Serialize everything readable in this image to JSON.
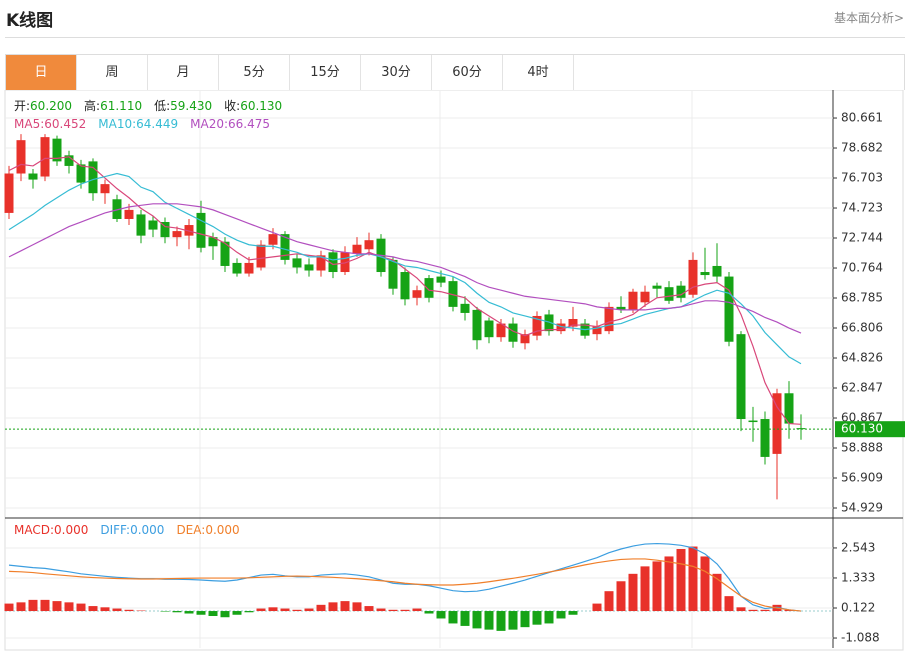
{
  "header": {
    "title": "K线图",
    "link": "基本面分析>"
  },
  "tabs": [
    "日",
    "周",
    "月",
    "5分",
    "15分",
    "30分",
    "60分",
    "4时"
  ],
  "active_tab": 0,
  "chart_data": [
    {
      "type": "candlestick",
      "up_color": "#e8312a",
      "down_color": "#16a316",
      "grid": true,
      "info": [
        {
          "label": "开:",
          "value": "60.200"
        },
        {
          "label": "高:",
          "value": "61.110"
        },
        {
          "label": "低:",
          "value": "59.430"
        },
        {
          "label": "收:",
          "value": "60.130"
        }
      ],
      "current_price": {
        "value": 60.13,
        "label": "60.130"
      },
      "current_color": "#16a316",
      "ylim": [
        54.27,
        82.51
      ],
      "yticks": [
        80.661,
        78.682,
        76.703,
        74.723,
        72.744,
        70.764,
        68.785,
        66.806,
        64.826,
        62.847,
        60.867,
        58.888,
        56.909,
        54.929
      ],
      "ohlc": [
        [
          74.4,
          77.5,
          74.0,
          77.0
        ],
        [
          77.0,
          79.6,
          76.5,
          79.2
        ],
        [
          77.0,
          77.3,
          76.0,
          76.6
        ],
        [
          76.8,
          79.6,
          76.5,
          79.4
        ],
        [
          79.3,
          79.5,
          77.5,
          77.8
        ],
        [
          78.2,
          78.5,
          77.0,
          77.5
        ],
        [
          77.6,
          77.9,
          76.0,
          76.4
        ],
        [
          77.8,
          78.0,
          75.2,
          75.7
        ],
        [
          75.7,
          76.6,
          75.0,
          76.3
        ],
        [
          75.3,
          75.6,
          73.8,
          74.0
        ],
        [
          74.0,
          75.0,
          73.6,
          74.6
        ],
        [
          74.3,
          74.6,
          72.4,
          72.9
        ],
        [
          73.9,
          74.2,
          72.8,
          73.3
        ],
        [
          73.8,
          74.1,
          72.4,
          72.8
        ],
        [
          72.8,
          73.5,
          72.2,
          73.2
        ],
        [
          72.9,
          74.0,
          72.0,
          73.6
        ],
        [
          74.4,
          75.2,
          71.8,
          72.1
        ],
        [
          72.8,
          73.1,
          71.3,
          72.2
        ],
        [
          72.5,
          72.8,
          70.5,
          70.9
        ],
        [
          71.1,
          71.4,
          70.2,
          70.4
        ],
        [
          70.4,
          71.5,
          70.2,
          71.1
        ],
        [
          70.8,
          72.6,
          70.6,
          72.3
        ],
        [
          72.3,
          73.4,
          72.0,
          73.0
        ],
        [
          73.0,
          73.2,
          71.0,
          71.3
        ],
        [
          71.4,
          71.7,
          70.4,
          70.8
        ],
        [
          71.0,
          71.4,
          70.2,
          70.6
        ],
        [
          70.6,
          71.9,
          70.2,
          71.6
        ],
        [
          71.8,
          72.0,
          70.1,
          70.5
        ],
        [
          70.5,
          72.2,
          70.3,
          71.8
        ],
        [
          71.7,
          72.8,
          71.5,
          72.3
        ],
        [
          72.0,
          73.1,
          71.6,
          72.6
        ],
        [
          72.7,
          73.0,
          70.2,
          70.5
        ],
        [
          71.3,
          71.5,
          69.0,
          69.4
        ],
        [
          70.5,
          70.8,
          68.3,
          68.7
        ],
        [
          68.8,
          69.6,
          68.3,
          69.3
        ],
        [
          70.1,
          70.3,
          68.5,
          68.8
        ],
        [
          70.2,
          70.6,
          69.5,
          69.8
        ],
        [
          69.9,
          70.2,
          67.9,
          68.2
        ],
        [
          68.4,
          68.9,
          67.3,
          67.8
        ],
        [
          68.0,
          68.2,
          65.4,
          66.0
        ],
        [
          67.3,
          67.5,
          65.8,
          66.2
        ],
        [
          66.2,
          67.4,
          65.9,
          67.1
        ],
        [
          67.1,
          67.5,
          65.5,
          65.9
        ],
        [
          65.8,
          66.7,
          65.4,
          66.4
        ],
        [
          66.3,
          67.9,
          66.0,
          67.6
        ],
        [
          67.7,
          68.0,
          66.3,
          66.6
        ],
        [
          66.6,
          67.4,
          66.4,
          67.1
        ],
        [
          66.9,
          68.2,
          66.6,
          67.4
        ],
        [
          67.1,
          67.4,
          66.1,
          66.3
        ],
        [
          66.4,
          67.3,
          66.0,
          66.9
        ],
        [
          66.6,
          68.5,
          66.4,
          68.2
        ],
        [
          68.2,
          68.9,
          67.8,
          68.0
        ],
        [
          68.0,
          69.4,
          67.8,
          69.2
        ],
        [
          68.5,
          69.6,
          68.2,
          69.2
        ],
        [
          69.6,
          69.8,
          68.8,
          69.4
        ],
        [
          69.5,
          69.9,
          68.4,
          68.6
        ],
        [
          69.6,
          69.9,
          68.5,
          68.8
        ],
        [
          69.0,
          71.8,
          68.8,
          71.3
        ],
        [
          70.5,
          72.1,
          70.0,
          70.3
        ],
        [
          70.9,
          72.4,
          69.8,
          70.2
        ],
        [
          70.2,
          70.5,
          65.6,
          65.9
        ],
        [
          66.4,
          66.6,
          60.0,
          60.8
        ],
        [
          60.7,
          61.6,
          59.3,
          60.6
        ],
        [
          60.8,
          61.3,
          57.8,
          58.3
        ],
        [
          58.5,
          62.8,
          55.5,
          62.5
        ],
        [
          62.5,
          63.3,
          59.5,
          60.5
        ],
        [
          60.2,
          61.11,
          59.43,
          60.13
        ]
      ],
      "series": [
        {
          "name": "MA5:",
          "legend_value": "60.452",
          "color": "#d9477a",
          "values": [
            77.2,
            77.6,
            77.5,
            78.0,
            78.0,
            78.1,
            77.5,
            77.4,
            76.7,
            76.0,
            75.4,
            74.7,
            74.2,
            73.5,
            73.4,
            73.2,
            73.0,
            72.8,
            72.4,
            71.8,
            71.3,
            71.4,
            71.5,
            71.6,
            71.7,
            71.6,
            71.5,
            71.0,
            71.1,
            71.4,
            71.8,
            71.5,
            71.3,
            70.7,
            70.1,
            69.3,
            69.2,
            69.0,
            68.8,
            68.1,
            67.6,
            67.1,
            66.6,
            66.3,
            66.6,
            66.7,
            66.7,
            67.0,
            67.0,
            66.9,
            67.2,
            67.4,
            67.7,
            68.3,
            68.8,
            68.9,
            69.0,
            69.5,
            69.7,
            69.8,
            69.3,
            67.7,
            65.6,
            63.2,
            61.6,
            60.5,
            60.452
          ]
        },
        {
          "name": "MA10:",
          "legend_value": "64.449",
          "color": "#36bcd4",
          "values": [
            73.3,
            73.8,
            74.3,
            74.9,
            75.4,
            75.9,
            76.3,
            76.6,
            76.8,
            77.0,
            76.8,
            76.1,
            75.8,
            75.1,
            74.7,
            74.3,
            73.9,
            73.5,
            73.0,
            72.6,
            72.3,
            72.2,
            72.2,
            72.0,
            71.8,
            71.5,
            71.5,
            71.3,
            71.4,
            71.6,
            71.7,
            71.5,
            71.2,
            70.9,
            70.8,
            70.6,
            70.4,
            70.2,
            69.8,
            69.1,
            68.5,
            68.2,
            67.8,
            67.6,
            67.4,
            67.2,
            66.9,
            66.8,
            66.7,
            66.8,
            67.0,
            67.1,
            67.4,
            67.7,
            67.9,
            68.1,
            68.2,
            68.6,
            69.0,
            69.3,
            69.1,
            68.4,
            67.6,
            66.5,
            65.7,
            64.9,
            64.449
          ]
        },
        {
          "name": "MA20:",
          "legend_value": "66.475",
          "color": "#b24fbf",
          "values": [
            71.5,
            71.9,
            72.3,
            72.7,
            73.1,
            73.5,
            73.8,
            74.1,
            74.4,
            74.6,
            74.8,
            74.9,
            75.0,
            75.0,
            75.0,
            74.9,
            74.8,
            74.6,
            74.3,
            74.0,
            73.7,
            73.4,
            73.1,
            72.8,
            72.5,
            72.3,
            72.1,
            71.9,
            71.8,
            71.7,
            71.7,
            71.6,
            71.5,
            71.3,
            71.2,
            71.0,
            70.8,
            70.5,
            70.2,
            69.8,
            69.5,
            69.3,
            69.1,
            68.9,
            68.8,
            68.7,
            68.6,
            68.5,
            68.4,
            68.2,
            68.1,
            68.0,
            68.0,
            68.0,
            68.1,
            68.1,
            68.2,
            68.4,
            68.6,
            68.6,
            68.5,
            68.2,
            67.9,
            67.5,
            67.2,
            66.8,
            66.475
          ]
        }
      ]
    },
    {
      "type": "macd",
      "grid": true,
      "ylim": [
        -1.49,
        3.75
      ],
      "yticks": [
        2.543,
        1.333,
        0.122,
        -1.088
      ],
      "up_color": "#e8312a",
      "down_color": "#16a316",
      "series": [
        {
          "name": "MACD:",
          "legend_value": "0.000",
          "color": "#e8312a",
          "style": "bar",
          "values": [
            0.3,
            0.35,
            0.45,
            0.45,
            0.4,
            0.35,
            0.3,
            0.2,
            0.15,
            0.1,
            0.05,
            0.02,
            0.0,
            -0.02,
            -0.05,
            -0.1,
            -0.15,
            -0.2,
            -0.25,
            -0.15,
            -0.05,
            0.1,
            0.15,
            0.1,
            0.05,
            0.1,
            0.25,
            0.35,
            0.4,
            0.35,
            0.2,
            0.1,
            0.05,
            0.05,
            0.1,
            -0.1,
            -0.3,
            -0.5,
            -0.6,
            -0.7,
            -0.75,
            -0.8,
            -0.75,
            -0.65,
            -0.55,
            -0.5,
            -0.3,
            -0.15,
            0.0,
            0.3,
            0.8,
            1.2,
            1.5,
            1.8,
            2.0,
            2.2,
            2.5,
            2.6,
            2.2,
            1.5,
            0.6,
            0.15,
            0.05,
            0.05,
            0.25,
            0.05,
            0.0
          ]
        },
        {
          "name": "DIFF:",
          "legend_value": "0.000",
          "color": "#3c9ee0",
          "style": "line",
          "values": [
            1.85,
            1.8,
            1.75,
            1.72,
            1.65,
            1.58,
            1.5,
            1.45,
            1.4,
            1.36,
            1.33,
            1.3,
            1.3,
            1.28,
            1.28,
            1.27,
            1.25,
            1.22,
            1.2,
            1.25,
            1.35,
            1.45,
            1.48,
            1.42,
            1.38,
            1.38,
            1.45,
            1.48,
            1.5,
            1.45,
            1.38,
            1.25,
            1.12,
            1.08,
            1.08,
            1.02,
            0.92,
            0.82,
            0.78,
            0.8,
            0.88,
            1.0,
            1.12,
            1.25,
            1.4,
            1.55,
            1.7,
            1.85,
            2.0,
            2.15,
            2.35,
            2.5,
            2.62,
            2.7,
            2.72,
            2.7,
            2.65,
            2.55,
            2.3,
            1.9,
            1.3,
            0.6,
            0.25,
            0.1,
            0.15,
            0.05,
            0.0
          ]
        },
        {
          "name": "DEA:",
          "legend_value": "0.000",
          "color": "#f07f2a",
          "style": "line",
          "values": [
            1.6,
            1.58,
            1.55,
            1.5,
            1.46,
            1.42,
            1.38,
            1.35,
            1.33,
            1.31,
            1.3,
            1.29,
            1.29,
            1.3,
            1.31,
            1.32,
            1.33,
            1.33,
            1.33,
            1.33,
            1.34,
            1.36,
            1.38,
            1.4,
            1.41,
            1.4,
            1.38,
            1.36,
            1.33,
            1.3,
            1.26,
            1.22,
            1.18,
            1.12,
            1.08,
            1.06,
            1.05,
            1.05,
            1.08,
            1.12,
            1.18,
            1.25,
            1.32,
            1.4,
            1.48,
            1.57,
            1.66,
            1.76,
            1.86,
            1.95,
            2.02,
            2.08,
            2.1,
            2.1,
            2.05,
            1.98,
            1.9,
            1.8,
            1.6,
            1.3,
            0.95,
            0.6,
            0.35,
            0.2,
            0.12,
            0.05,
            0.0
          ]
        }
      ]
    }
  ]
}
